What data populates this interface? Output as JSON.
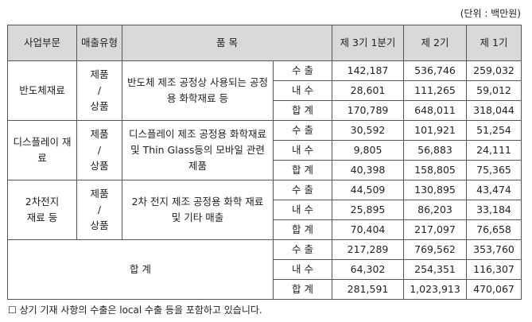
{
  "unit_label": "(단위 : 백만원)",
  "headers": {
    "segment": "사업부문",
    "sales_type": "매출유형",
    "item": "품 목",
    "period_current": "제 3기 1분기",
    "period_prev": "제 2기",
    "period_prev2": "제 1기"
  },
  "groups": [
    {
      "segment": "반도체재료",
      "sales_type": "제품\n/\n상품",
      "item": "반도체 제조 공정상 사용되는 공정용 화학재료 등",
      "rows": [
        {
          "label": "수 출",
          "v1": "142,187",
          "v2": "536,746",
          "v3": "259,032"
        },
        {
          "label": "내 수",
          "v1": "28,601",
          "v2": "111,265",
          "v3": "59,012"
        },
        {
          "label": "합 계",
          "v1": "170,789",
          "v2": "648,011",
          "v3": "318,044"
        }
      ]
    },
    {
      "segment": "디스플레이 재료",
      "sales_type": "제품\n/\n상품",
      "item": "디스플레이 제조 공정용 화학재료 및 Thin Glass등의 모바일 관련 제품",
      "rows": [
        {
          "label": "수 출",
          "v1": "30,592",
          "v2": "101,921",
          "v3": "51,254"
        },
        {
          "label": "내 수",
          "v1": "9,805",
          "v2": "56,883",
          "v3": "24,111"
        },
        {
          "label": "합 계",
          "v1": "40,398",
          "v2": "158,805",
          "v3": "75,365"
        }
      ]
    },
    {
      "segment": "2차전지\n재료 등",
      "sales_type": "제품\n/\n상품",
      "item": "2차 전지 제조 공정용 화학 재료 및 기타 매출",
      "rows": [
        {
          "label": "수 출",
          "v1": "44,509",
          "v2": "130,895",
          "v3": "43,474"
        },
        {
          "label": "내 수",
          "v1": "25,895",
          "v2": "86,203",
          "v3": "33,184"
        },
        {
          "label": "합 계",
          "v1": "70,404",
          "v2": "217,097",
          "v3": "76,658"
        }
      ]
    }
  ],
  "total": {
    "label": "합 계",
    "rows": [
      {
        "label": "수 출",
        "v1": "217,289",
        "v2": "769,562",
        "v3": "353,760"
      },
      {
        "label": "내 수",
        "v1": "64,302",
        "v2": "254,351",
        "v3": "116,307"
      },
      {
        "label": "합 계",
        "v1": "281,591",
        "v2": "1,023,913",
        "v3": "470,067"
      }
    ]
  },
  "note": "☐ 상기 기재 사항의 수출은 local 수출 등을 포함하고 있습니다."
}
